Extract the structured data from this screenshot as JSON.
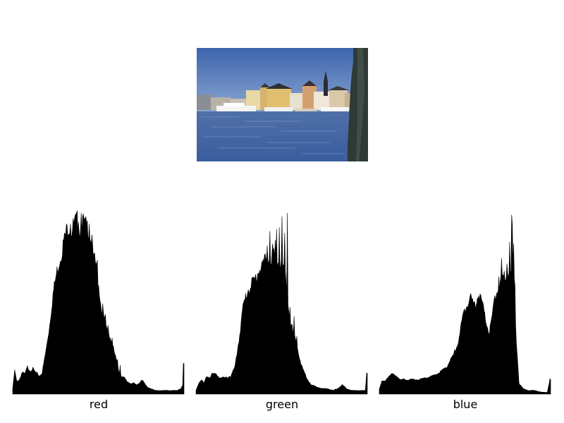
{
  "image": {
    "description_icon": "harbor-photo"
  },
  "colors": {
    "hist_fill": "#000000",
    "sky": "#5a7fbf",
    "water": "#3c64a8"
  },
  "chart_data": [
    {
      "type": "area",
      "label": "red",
      "xlim": [
        0,
        255
      ],
      "keypoints": [
        [
          0,
          0.03
        ],
        [
          3,
          0.13
        ],
        [
          6,
          0.07
        ],
        [
          10,
          0.08
        ],
        [
          14,
          0.12
        ],
        [
          18,
          0.11
        ],
        [
          22,
          0.15
        ],
        [
          26,
          0.13
        ],
        [
          30,
          0.14
        ],
        [
          34,
          0.12
        ],
        [
          40,
          0.1
        ],
        [
          44,
          0.12
        ],
        [
          50,
          0.25
        ],
        [
          55,
          0.38
        ],
        [
          60,
          0.55
        ],
        [
          66,
          0.68
        ],
        [
          72,
          0.77
        ],
        [
          76,
          0.84
        ],
        [
          80,
          0.9
        ],
        [
          84,
          0.93
        ],
        [
          88,
          0.9
        ],
        [
          92,
          0.94
        ],
        [
          96,
          0.96
        ],
        [
          100,
          0.9
        ],
        [
          104,
          0.95
        ],
        [
          108,
          0.93
        ],
        [
          112,
          0.92
        ],
        [
          116,
          0.87
        ],
        [
          120,
          0.75
        ],
        [
          124,
          0.72
        ],
        [
          128,
          0.6
        ],
        [
          132,
          0.47
        ],
        [
          136,
          0.42
        ],
        [
          140,
          0.36
        ],
        [
          144,
          0.33
        ],
        [
          148,
          0.27
        ],
        [
          150,
          0.25
        ],
        [
          154,
          0.19
        ],
        [
          158,
          0.13
        ],
        [
          162,
          0.1
        ],
        [
          166,
          0.09
        ],
        [
          170,
          0.07
        ],
        [
          175,
          0.06
        ],
        [
          180,
          0.06
        ],
        [
          184,
          0.05
        ],
        [
          188,
          0.06
        ],
        [
          192,
          0.08
        ],
        [
          196,
          0.06
        ],
        [
          200,
          0.04
        ],
        [
          206,
          0.03
        ],
        [
          212,
          0.02
        ],
        [
          220,
          0.02
        ],
        [
          228,
          0.02
        ],
        [
          236,
          0.02
        ],
        [
          244,
          0.02
        ],
        [
          250,
          0.03
        ],
        [
          253,
          0.05
        ],
        [
          254,
          0.16
        ]
      ],
      "spikes": [
        [
          70,
          0.62
        ],
        [
          78,
          0.81
        ],
        [
          86,
          0.94
        ],
        [
          90,
          0.97
        ],
        [
          95,
          0.98
        ],
        [
          98,
          0.95
        ],
        [
          102,
          1.0
        ],
        [
          106,
          0.97
        ],
        [
          110,
          0.93
        ],
        [
          114,
          0.94
        ],
        [
          118,
          0.88
        ],
        [
          126,
          0.74
        ],
        [
          134,
          0.5
        ],
        [
          138,
          0.44
        ],
        [
          142,
          0.38
        ],
        [
          148,
          0.31
        ],
        [
          156,
          0.19
        ],
        [
          160,
          0.16
        ]
      ]
    },
    {
      "type": "area",
      "label": "green",
      "xlim": [
        0,
        255
      ],
      "keypoints": [
        [
          0,
          0.02
        ],
        [
          4,
          0.06
        ],
        [
          8,
          0.08
        ],
        [
          12,
          0.06
        ],
        [
          16,
          0.1
        ],
        [
          20,
          0.09
        ],
        [
          24,
          0.11
        ],
        [
          30,
          0.11
        ],
        [
          36,
          0.09
        ],
        [
          44,
          0.09
        ],
        [
          52,
          0.1
        ],
        [
          58,
          0.15
        ],
        [
          64,
          0.3
        ],
        [
          70,
          0.48
        ],
        [
          76,
          0.56
        ],
        [
          82,
          0.61
        ],
        [
          88,
          0.63
        ],
        [
          92,
          0.67
        ],
        [
          98,
          0.71
        ],
        [
          104,
          0.74
        ],
        [
          108,
          0.76
        ],
        [
          112,
          0.73
        ],
        [
          116,
          0.76
        ],
        [
          120,
          0.73
        ],
        [
          124,
          0.72
        ],
        [
          128,
          0.71
        ],
        [
          132,
          0.7
        ],
        [
          136,
          0.54
        ],
        [
          140,
          0.41
        ],
        [
          144,
          0.35
        ],
        [
          148,
          0.3
        ],
        [
          152,
          0.24
        ],
        [
          156,
          0.17
        ],
        [
          160,
          0.13
        ],
        [
          166,
          0.08
        ],
        [
          172,
          0.05
        ],
        [
          180,
          0.04
        ],
        [
          188,
          0.03
        ],
        [
          196,
          0.03
        ],
        [
          204,
          0.02
        ],
        [
          210,
          0.03
        ],
        [
          218,
          0.05
        ],
        [
          224,
          0.03
        ],
        [
          232,
          0.02
        ],
        [
          240,
          0.02
        ],
        [
          248,
          0.02
        ],
        [
          252,
          0.02
        ],
        [
          254,
          0.12
        ]
      ],
      "spikes": [
        [
          102,
          0.77
        ],
        [
          106,
          0.82
        ],
        [
          110,
          0.9
        ],
        [
          114,
          0.83
        ],
        [
          118,
          0.85
        ],
        [
          120,
          0.91
        ],
        [
          124,
          0.92
        ],
        [
          128,
          0.98
        ],
        [
          132,
          0.89
        ],
        [
          136,
          1.0
        ],
        [
          140,
          0.48
        ],
        [
          146,
          0.43
        ],
        [
          150,
          0.32
        ]
      ]
    },
    {
      "type": "area",
      "label": "blue",
      "xlim": [
        0,
        255
      ],
      "keypoints": [
        [
          0,
          0.03
        ],
        [
          4,
          0.07
        ],
        [
          8,
          0.07
        ],
        [
          14,
          0.1
        ],
        [
          20,
          0.11
        ],
        [
          26,
          0.1
        ],
        [
          32,
          0.08
        ],
        [
          40,
          0.08
        ],
        [
          50,
          0.08
        ],
        [
          60,
          0.08
        ],
        [
          70,
          0.09
        ],
        [
          80,
          0.1
        ],
        [
          90,
          0.12
        ],
        [
          100,
          0.15
        ],
        [
          110,
          0.21
        ],
        [
          118,
          0.3
        ],
        [
          124,
          0.42
        ],
        [
          130,
          0.5
        ],
        [
          136,
          0.54
        ],
        [
          140,
          0.49
        ],
        [
          144,
          0.5
        ],
        [
          148,
          0.55
        ],
        [
          152,
          0.52
        ],
        [
          156,
          0.45
        ],
        [
          160,
          0.38
        ],
        [
          164,
          0.34
        ],
        [
          168,
          0.43
        ],
        [
          172,
          0.52
        ],
        [
          176,
          0.58
        ],
        [
          180,
          0.61
        ],
        [
          184,
          0.63
        ],
        [
          188,
          0.65
        ],
        [
          192,
          0.68
        ],
        [
          196,
          0.66
        ],
        [
          200,
          0.7
        ],
        [
          204,
          0.3
        ],
        [
          208,
          0.06
        ],
        [
          214,
          0.03
        ],
        [
          222,
          0.02
        ],
        [
          232,
          0.02
        ],
        [
          242,
          0.01
        ],
        [
          250,
          0.01
        ],
        [
          254,
          0.08
        ]
      ],
      "spikes": [
        [
          142,
          0.51
        ],
        [
          146,
          0.53
        ],
        [
          150,
          0.55
        ],
        [
          170,
          0.5
        ],
        [
          174,
          0.54
        ],
        [
          178,
          0.65
        ],
        [
          182,
          0.75
        ],
        [
          186,
          0.68
        ],
        [
          190,
          0.72
        ],
        [
          194,
          0.84
        ],
        [
          197,
          0.99
        ],
        [
          198,
          0.94
        ],
        [
          200,
          0.83
        ],
        [
          202,
          0.6
        ]
      ]
    }
  ]
}
